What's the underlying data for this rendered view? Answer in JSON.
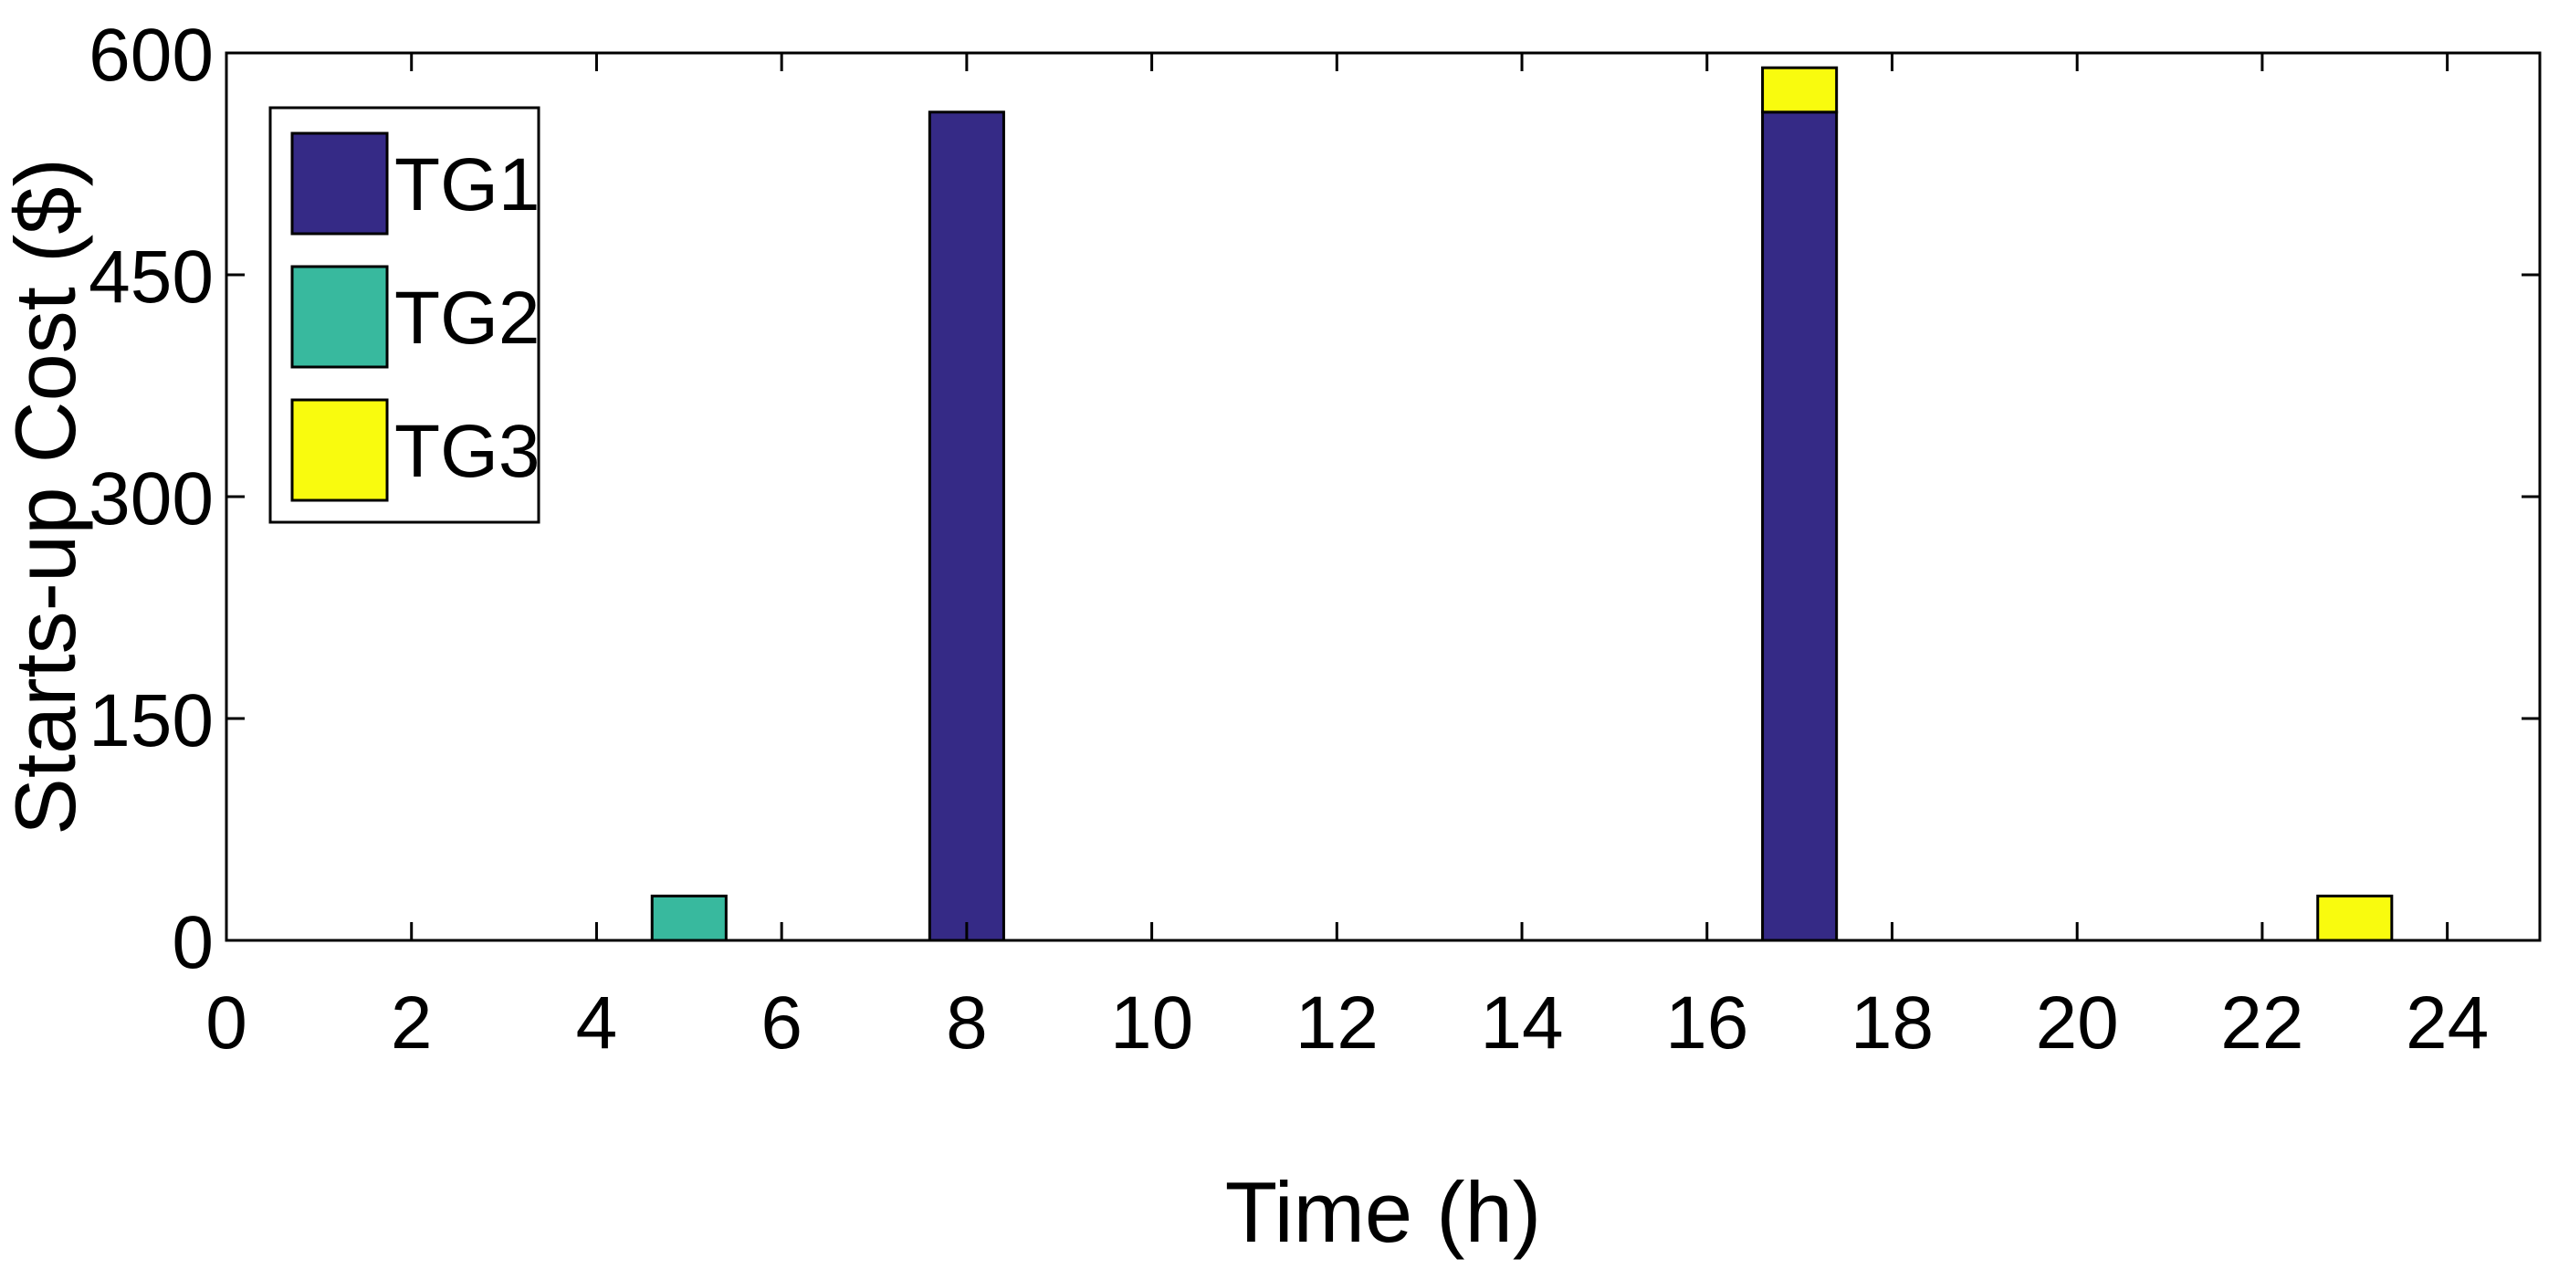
{
  "chart_data": {
    "type": "bar",
    "stacked": true,
    "x": [
      5,
      8,
      17,
      23
    ],
    "series": [
      {
        "name": "TG1",
        "color": "#352a86",
        "values": [
          0,
          560,
          560,
          0
        ]
      },
      {
        "name": "TG2",
        "color": "#38b99e",
        "values": [
          30,
          0,
          0,
          0
        ]
      },
      {
        "name": "TG3",
        "color": "#f9fb0e",
        "values": [
          0,
          0,
          30,
          30
        ]
      }
    ],
    "xlabel": "Time (h)",
    "ylabel": "Starts-up Cost ($)",
    "xlim": [
      0,
      25
    ],
    "ylim": [
      0,
      600
    ],
    "xticks": [
      0,
      2,
      4,
      6,
      8,
      10,
      12,
      14,
      16,
      18,
      20,
      22,
      24
    ],
    "yticks": [
      0,
      150,
      300,
      450,
      600
    ],
    "bar_width": 0.8,
    "grid": false,
    "legend_position": "top-left"
  }
}
